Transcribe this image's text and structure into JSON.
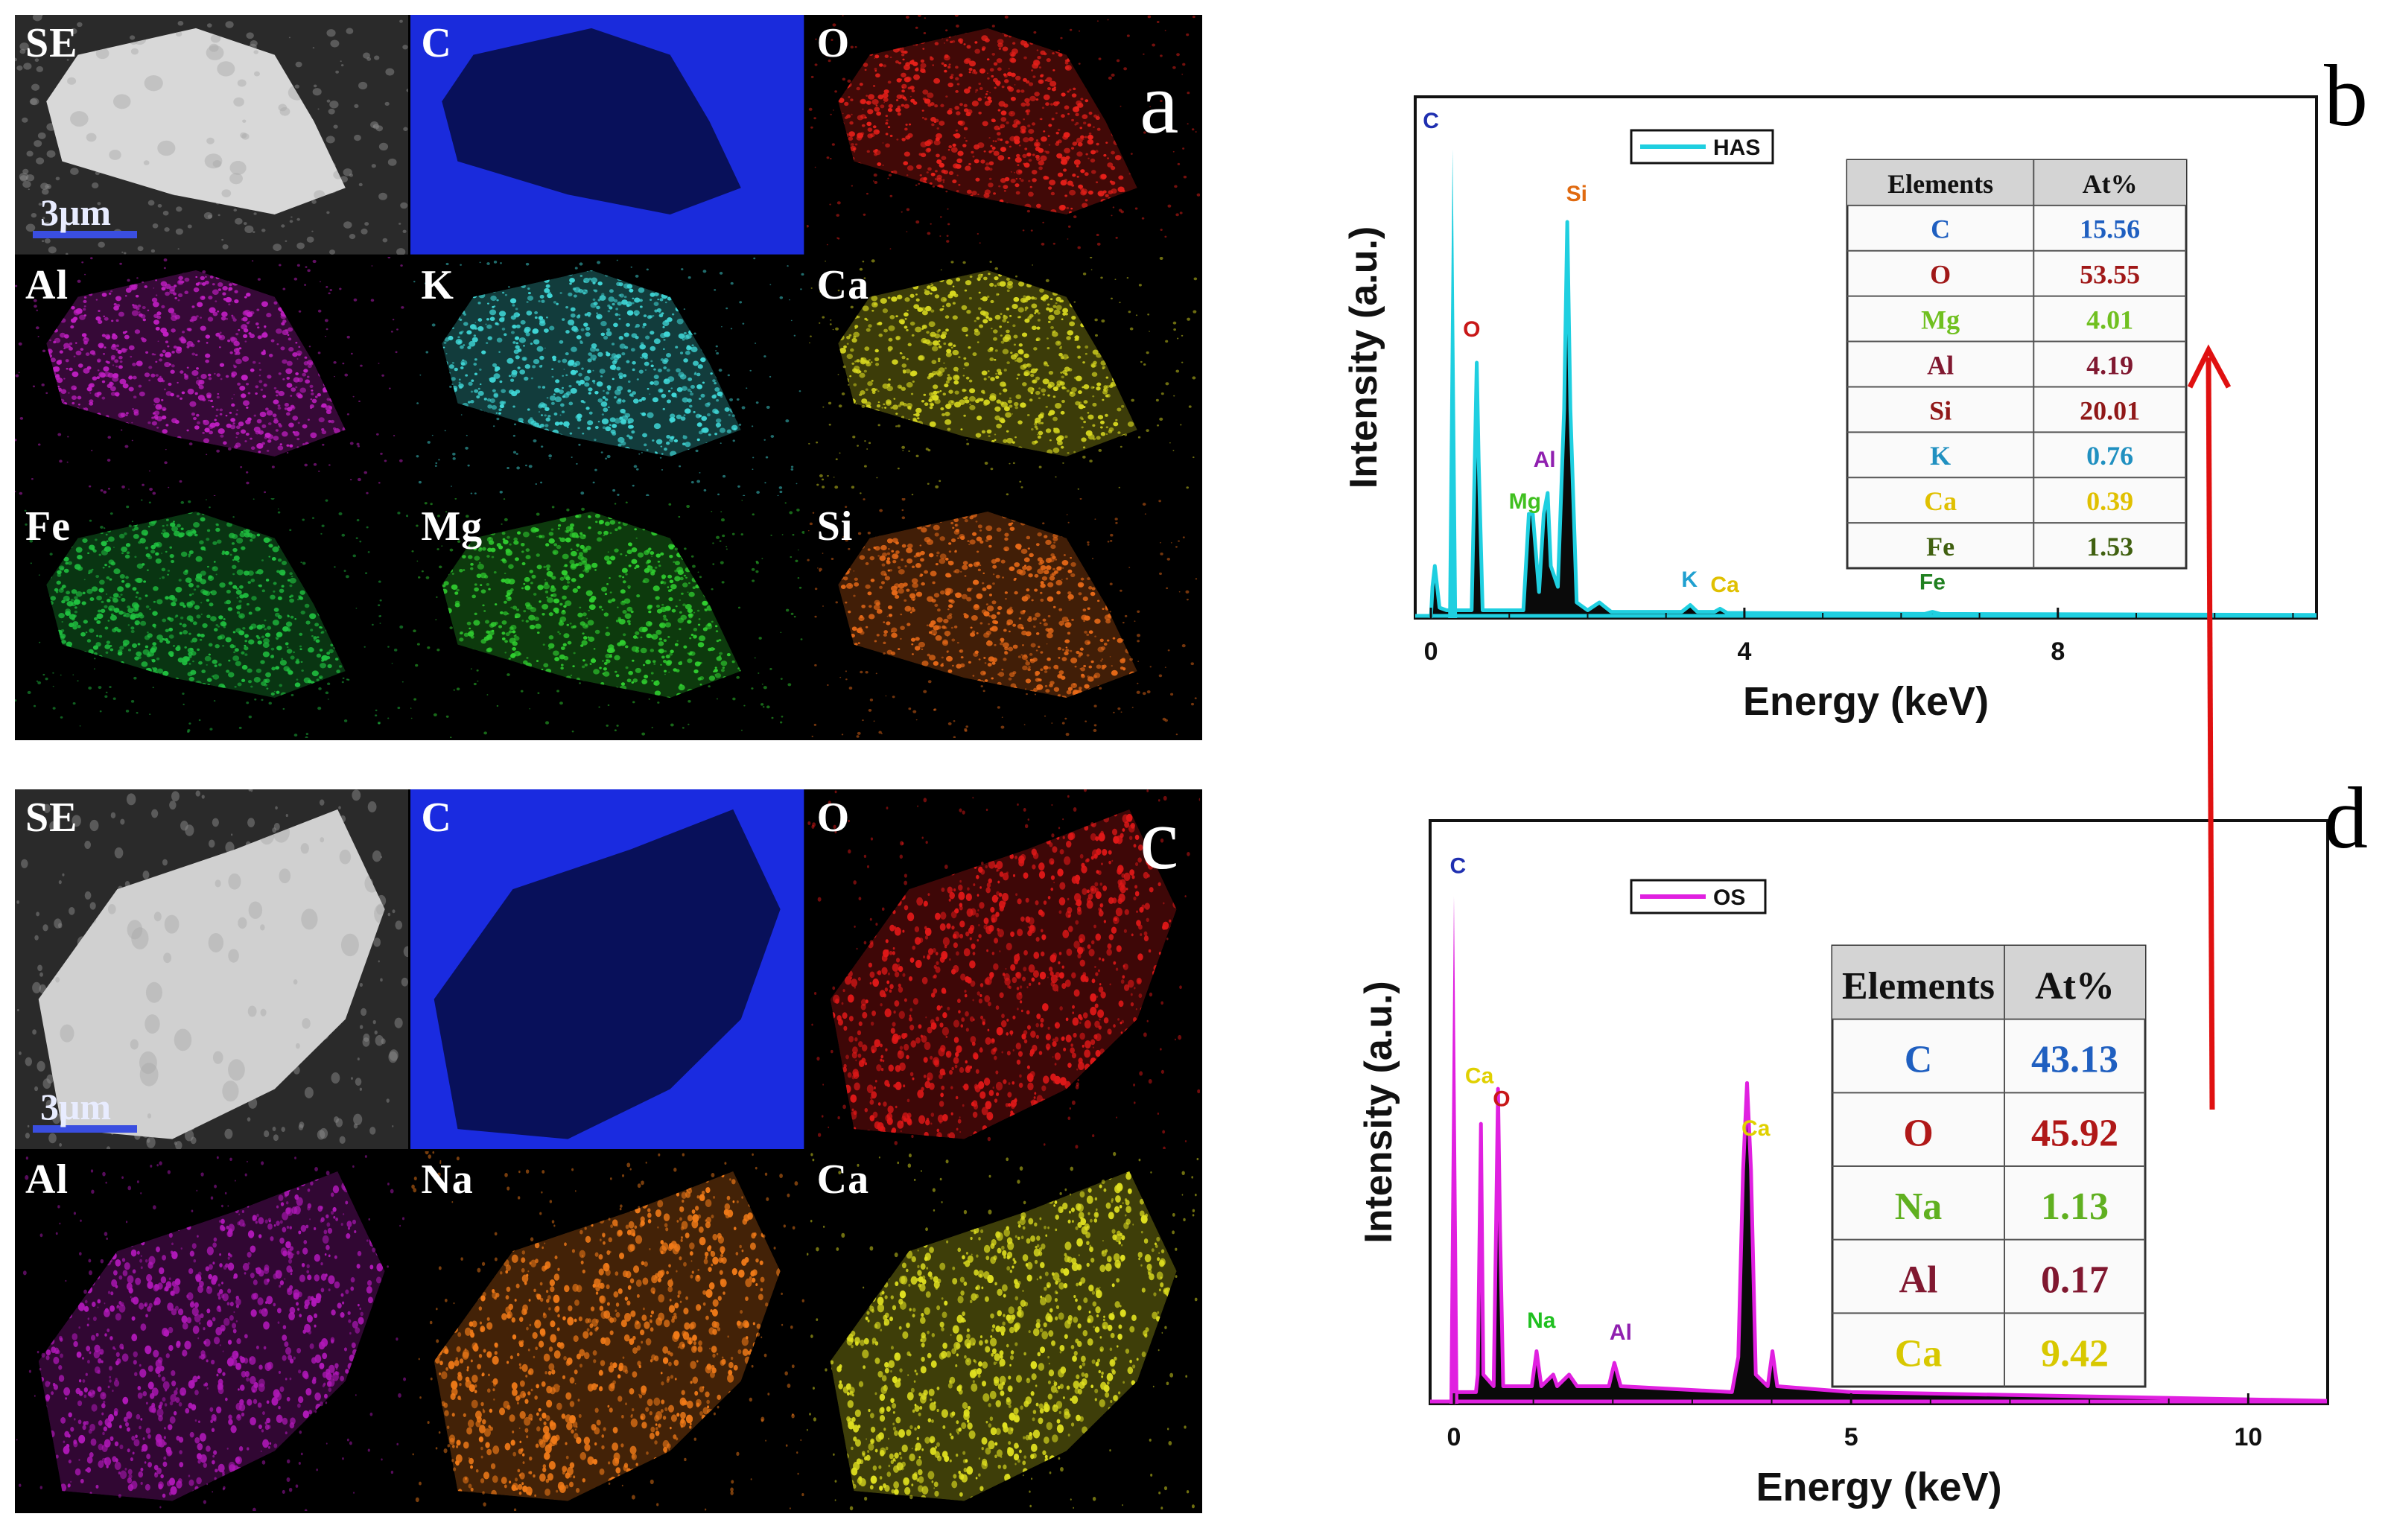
{
  "panels": {
    "a": {
      "letter": "a",
      "scale_bar": "3μm",
      "tiles": [
        {
          "label": "SE",
          "color": "#d8d8d8"
        },
        {
          "label": "C",
          "color": "#1a2bdc"
        },
        {
          "label": "O",
          "color": "#e8201a"
        },
        {
          "label": "Al",
          "color": "#c21fc4"
        },
        {
          "label": "K",
          "color": "#40d8d8"
        },
        {
          "label": "Ca",
          "color": "#d8d820"
        },
        {
          "label": "Fe",
          "color": "#20c040"
        },
        {
          "label": "Mg",
          "color": "#30d030"
        },
        {
          "label": "Si",
          "color": "#e86a18"
        }
      ]
    },
    "c": {
      "letter": "c",
      "scale_bar": "3μm",
      "tiles": [
        {
          "label": "SE",
          "color": "#d0d0d0"
        },
        {
          "label": "C",
          "color": "#1a2be0"
        },
        {
          "label": "O",
          "color": "#e01818"
        },
        {
          "label": "Al",
          "color": "#b018b8"
        },
        {
          "label": "Na",
          "color": "#f07a18"
        },
        {
          "label": "Ca",
          "color": "#e0e020"
        }
      ]
    }
  },
  "chart_data": [
    {
      "panel": "b",
      "type": "line",
      "legend": "HAS",
      "line_color": "#1fcfe0",
      "xlabel": "Energy (keV)",
      "ylabel": "Intensity (a.u.)",
      "xlim": [
        -0.2,
        11.3
      ],
      "xticks": [
        0,
        4,
        8
      ],
      "spectrum": [
        {
          "x": 0.0,
          "y": 0
        },
        {
          "x": 0.02,
          "y": 0.06
        },
        {
          "x": 0.05,
          "y": 0.1
        },
        {
          "x": 0.11,
          "y": 0.02
        },
        {
          "x": 0.2,
          "y": 0.015
        },
        {
          "x": 0.277,
          "y": 0.015
        },
        {
          "x": 0.52,
          "y": 0.015
        },
        {
          "x": 0.56,
          "y": 0.3
        },
        {
          "x": 0.585,
          "y": 0.49
        },
        {
          "x": 0.61,
          "y": 0.3
        },
        {
          "x": 0.66,
          "y": 0.015
        },
        {
          "x": 1.18,
          "y": 0.015
        },
        {
          "x": 1.25,
          "y": 0.2
        },
        {
          "x": 1.3,
          "y": 0.2
        },
        {
          "x": 1.38,
          "y": 0.05
        },
        {
          "x": 1.44,
          "y": 0.2
        },
        {
          "x": 1.49,
          "y": 0.24
        },
        {
          "x": 1.53,
          "y": 0.1
        },
        {
          "x": 1.62,
          "y": 0.06
        },
        {
          "x": 1.7,
          "y": 0.4
        },
        {
          "x": 1.74,
          "y": 0.76
        },
        {
          "x": 1.78,
          "y": 0.4
        },
        {
          "x": 1.86,
          "y": 0.03
        },
        {
          "x": 2.0,
          "y": 0.015
        },
        {
          "x": 2.15,
          "y": 0.03
        },
        {
          "x": 2.3,
          "y": 0.012
        },
        {
          "x": 3.2,
          "y": 0.012
        },
        {
          "x": 3.31,
          "y": 0.025
        },
        {
          "x": 3.4,
          "y": 0.012
        },
        {
          "x": 3.62,
          "y": 0.012
        },
        {
          "x": 3.69,
          "y": 0.018
        },
        {
          "x": 3.78,
          "y": 0.01
        },
        {
          "x": 6.3,
          "y": 0.008
        },
        {
          "x": 6.4,
          "y": 0.012
        },
        {
          "x": 6.5,
          "y": 0.008
        },
        {
          "x": 11.3,
          "y": 0.006
        }
      ],
      "carbon_peak": {
        "x": 0.277,
        "y": 0.9
      },
      "peak_labels": [
        {
          "label": "C",
          "x": 0.0,
          "y": 0.94,
          "color": "#1f2fb0"
        },
        {
          "label": "O",
          "x": 0.52,
          "y": 0.54,
          "color": "#c81818"
        },
        {
          "label": "Si",
          "x": 1.86,
          "y": 0.8,
          "color": "#e06a10"
        },
        {
          "label": "Al",
          "x": 1.45,
          "y": 0.29,
          "color": "#9020b0"
        },
        {
          "label": "Mg",
          "x": 1.2,
          "y": 0.21,
          "color": "#40c020"
        },
        {
          "label": "K",
          "x": 3.3,
          "y": 0.06,
          "color": "#20a0d0"
        },
        {
          "label": "Ca",
          "x": 3.75,
          "y": 0.05,
          "color": "#e0c000"
        },
        {
          "label": "Fe",
          "x": 6.4,
          "y": 0.055,
          "color": "#208020"
        }
      ],
      "table": {
        "headers": [
          "Elements",
          "At%"
        ],
        "rows": [
          {
            "element": "C",
            "value": "15.56",
            "color": "#1f5fc0"
          },
          {
            "element": "O",
            "value": "53.55",
            "color": "#a01818"
          },
          {
            "element": "Mg",
            "value": "4.01",
            "color": "#70c020"
          },
          {
            "element": "Al",
            "value": "4.19",
            "color": "#801830"
          },
          {
            "element": "Si",
            "value": "20.01",
            "color": "#901818"
          },
          {
            "element": "K",
            "value": "0.76",
            "color": "#2090c0"
          },
          {
            "element": "Ca",
            "value": "0.39",
            "color": "#e0c000"
          },
          {
            "element": "Fe",
            "value": "1.53",
            "color": "#406010"
          }
        ]
      }
    },
    {
      "panel": "d",
      "type": "line",
      "legend": "OS",
      "line_color": "#e020e0",
      "xlabel": "Energy (keV)",
      "ylabel": "Intensity (a.u.)",
      "xlim": [
        -0.3,
        11.0
      ],
      "xticks": [
        0,
        5,
        10
      ],
      "spectrum": [
        {
          "x": 0.0,
          "y": 0
        },
        {
          "x": 0.03,
          "y": 0.02
        },
        {
          "x": 0.12,
          "y": 0.02
        },
        {
          "x": 0.277,
          "y": 0.02
        },
        {
          "x": 0.3,
          "y": 0.05
        },
        {
          "x": 0.34,
          "y": 0.48
        },
        {
          "x": 0.37,
          "y": 0.05
        },
        {
          "x": 0.5,
          "y": 0.03
        },
        {
          "x": 0.53,
          "y": 0.3
        },
        {
          "x": 0.555,
          "y": 0.54
        },
        {
          "x": 0.58,
          "y": 0.3
        },
        {
          "x": 0.62,
          "y": 0.03
        },
        {
          "x": 0.98,
          "y": 0.03
        },
        {
          "x": 1.04,
          "y": 0.09
        },
        {
          "x": 1.1,
          "y": 0.03
        },
        {
          "x": 1.25,
          "y": 0.05
        },
        {
          "x": 1.3,
          "y": 0.03
        },
        {
          "x": 1.45,
          "y": 0.05
        },
        {
          "x": 1.55,
          "y": 0.03
        },
        {
          "x": 1.95,
          "y": 0.03
        },
        {
          "x": 2.02,
          "y": 0.07
        },
        {
          "x": 2.1,
          "y": 0.03
        },
        {
          "x": 3.5,
          "y": 0.02
        },
        {
          "x": 3.58,
          "y": 0.08
        },
        {
          "x": 3.64,
          "y": 0.4
        },
        {
          "x": 3.69,
          "y": 0.55
        },
        {
          "x": 3.74,
          "y": 0.4
        },
        {
          "x": 3.8,
          "y": 0.05
        },
        {
          "x": 3.95,
          "y": 0.03
        },
        {
          "x": 4.01,
          "y": 0.09
        },
        {
          "x": 4.07,
          "y": 0.03
        },
        {
          "x": 5.0,
          "y": 0.02
        },
        {
          "x": 11.0,
          "y": 0.005
        }
      ],
      "carbon_peak": {
        "x": 0.0,
        "y": 0.87
      },
      "peak_labels": [
        {
          "label": "C",
          "x": 0.05,
          "y": 0.91,
          "color": "#1f2fb0"
        },
        {
          "label": "Ca",
          "x": 0.32,
          "y": 0.55,
          "color": "#e0d000"
        },
        {
          "label": "O",
          "x": 0.6,
          "y": 0.51,
          "color": "#c81818"
        },
        {
          "label": "Ca",
          "x": 3.8,
          "y": 0.46,
          "color": "#e0d000"
        },
        {
          "label": "Na",
          "x": 1.1,
          "y": 0.13,
          "color": "#20c020"
        },
        {
          "label": "Al",
          "x": 2.1,
          "y": 0.11,
          "color": "#9020b0"
        }
      ],
      "table": {
        "headers": [
          "Elements",
          "At%"
        ],
        "rows": [
          {
            "element": "C",
            "value": "43.13",
            "color": "#1f5fc0"
          },
          {
            "element": "O",
            "value": "45.92",
            "color": "#b01818"
          },
          {
            "element": "Na",
            "value": "1.13",
            "color": "#60b020"
          },
          {
            "element": "Al",
            "value": "0.17",
            "color": "#801830"
          },
          {
            "element": "Ca",
            "value": "9.42",
            "color": "#d8c800"
          }
        ]
      }
    }
  ],
  "arrow": {
    "color": "#e01010"
  }
}
